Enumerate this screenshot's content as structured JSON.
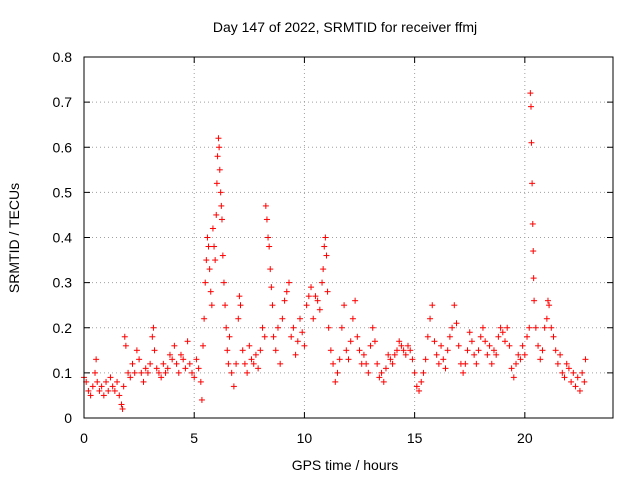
{
  "chart_data": {
    "type": "scatter",
    "title": "Day 147 of 2022, SRMTID for receiver ffmj",
    "xlabel": "GPS time / hours",
    "ylabel": "SRMTID / TECUs",
    "xlim": [
      0,
      24
    ],
    "ylim": [
      0,
      0.8
    ],
    "x_ticks": [
      0,
      5,
      10,
      15,
      20
    ],
    "y_ticks": [
      0,
      0.1,
      0.2,
      0.3,
      0.4,
      0.5,
      0.6,
      0.7,
      0.8
    ],
    "x_tick_labels": [
      "0",
      "5",
      "10",
      "15",
      "20"
    ],
    "y_tick_labels": [
      "0",
      "0.1",
      "0.2",
      "0.3",
      "0.4",
      "0.5",
      "0.6",
      "0.7",
      "0.8"
    ],
    "grid": true,
    "marker": "+",
    "series": [
      {
        "name": "SRMTID",
        "color": "#ff0000",
        "points": [
          [
            0.0,
            0.09
          ],
          [
            0.1,
            0.08
          ],
          [
            0.2,
            0.06
          ],
          [
            0.3,
            0.05
          ],
          [
            0.4,
            0.07
          ],
          [
            0.5,
            0.1
          ],
          [
            0.55,
            0.13
          ],
          [
            0.6,
            0.08
          ],
          [
            0.7,
            0.06
          ],
          [
            0.8,
            0.07
          ],
          [
            0.9,
            0.05
          ],
          [
            1.0,
            0.08
          ],
          [
            1.1,
            0.06
          ],
          [
            1.2,
            0.09
          ],
          [
            1.3,
            0.07
          ],
          [
            1.4,
            0.06
          ],
          [
            1.5,
            0.08
          ],
          [
            1.6,
            0.05
          ],
          [
            1.7,
            0.03
          ],
          [
            1.75,
            0.02
          ],
          [
            1.8,
            0.07
          ],
          [
            1.85,
            0.18
          ],
          [
            1.9,
            0.16
          ],
          [
            2.0,
            0.1
          ],
          [
            2.1,
            0.09
          ],
          [
            2.2,
            0.12
          ],
          [
            2.3,
            0.1
          ],
          [
            2.4,
            0.15
          ],
          [
            2.5,
            0.13
          ],
          [
            2.6,
            0.1
          ],
          [
            2.7,
            0.08
          ],
          [
            2.8,
            0.11
          ],
          [
            2.9,
            0.1
          ],
          [
            3.0,
            0.12
          ],
          [
            3.1,
            0.18
          ],
          [
            3.15,
            0.2
          ],
          [
            3.2,
            0.15
          ],
          [
            3.3,
            0.11
          ],
          [
            3.4,
            0.1
          ],
          [
            3.5,
            0.09
          ],
          [
            3.6,
            0.12
          ],
          [
            3.7,
            0.1
          ],
          [
            3.8,
            0.11
          ],
          [
            3.9,
            0.14
          ],
          [
            4.0,
            0.13
          ],
          [
            4.1,
            0.16
          ],
          [
            4.2,
            0.12
          ],
          [
            4.3,
            0.1
          ],
          [
            4.4,
            0.14
          ],
          [
            4.5,
            0.13
          ],
          [
            4.6,
            0.11
          ],
          [
            4.7,
            0.17
          ],
          [
            4.8,
            0.12
          ],
          [
            4.9,
            0.1
          ],
          [
            5.0,
            0.09
          ],
          [
            5.1,
            0.13
          ],
          [
            5.2,
            0.11
          ],
          [
            5.3,
            0.08
          ],
          [
            5.35,
            0.04
          ],
          [
            5.4,
            0.16
          ],
          [
            5.45,
            0.22
          ],
          [
            5.5,
            0.3
          ],
          [
            5.55,
            0.35
          ],
          [
            5.6,
            0.4
          ],
          [
            5.65,
            0.38
          ],
          [
            5.7,
            0.33
          ],
          [
            5.75,
            0.28
          ],
          [
            5.8,
            0.25
          ],
          [
            5.85,
            0.42
          ],
          [
            5.9,
            0.38
          ],
          [
            5.95,
            0.35
          ],
          [
            6.0,
            0.45
          ],
          [
            6.03,
            0.52
          ],
          [
            6.06,
            0.58
          ],
          [
            6.1,
            0.62
          ],
          [
            6.13,
            0.6
          ],
          [
            6.16,
            0.55
          ],
          [
            6.2,
            0.5
          ],
          [
            6.23,
            0.47
          ],
          [
            6.26,
            0.44
          ],
          [
            6.3,
            0.36
          ],
          [
            6.35,
            0.3
          ],
          [
            6.4,
            0.25
          ],
          [
            6.45,
            0.2
          ],
          [
            6.5,
            0.15
          ],
          [
            6.55,
            0.12
          ],
          [
            6.6,
            0.18
          ],
          [
            6.7,
            0.1
          ],
          [
            6.8,
            0.07
          ],
          [
            6.9,
            0.12
          ],
          [
            7.0,
            0.22
          ],
          [
            7.05,
            0.27
          ],
          [
            7.1,
            0.25
          ],
          [
            7.2,
            0.15
          ],
          [
            7.3,
            0.12
          ],
          [
            7.4,
            0.1
          ],
          [
            7.5,
            0.16
          ],
          [
            7.6,
            0.13
          ],
          [
            7.7,
            0.12
          ],
          [
            7.8,
            0.14
          ],
          [
            7.9,
            0.11
          ],
          [
            8.0,
            0.15
          ],
          [
            8.1,
            0.2
          ],
          [
            8.2,
            0.18
          ],
          [
            8.25,
            0.47
          ],
          [
            8.3,
            0.44
          ],
          [
            8.35,
            0.4
          ],
          [
            8.4,
            0.38
          ],
          [
            8.45,
            0.33
          ],
          [
            8.5,
            0.29
          ],
          [
            8.55,
            0.25
          ],
          [
            8.6,
            0.18
          ],
          [
            8.7,
            0.15
          ],
          [
            8.8,
            0.2
          ],
          [
            8.9,
            0.12
          ],
          [
            9.0,
            0.22
          ],
          [
            9.1,
            0.26
          ],
          [
            9.2,
            0.28
          ],
          [
            9.3,
            0.3
          ],
          [
            9.4,
            0.18
          ],
          [
            9.5,
            0.2
          ],
          [
            9.6,
            0.14
          ],
          [
            9.7,
            0.17
          ],
          [
            9.8,
            0.22
          ],
          [
            9.9,
            0.19
          ],
          [
            10.0,
            0.16
          ],
          [
            10.1,
            0.25
          ],
          [
            10.2,
            0.27
          ],
          [
            10.3,
            0.29
          ],
          [
            10.4,
            0.22
          ],
          [
            10.5,
            0.27
          ],
          [
            10.6,
            0.26
          ],
          [
            10.7,
            0.24
          ],
          [
            10.8,
            0.3
          ],
          [
            10.85,
            0.33
          ],
          [
            10.9,
            0.38
          ],
          [
            10.95,
            0.4
          ],
          [
            11.0,
            0.36
          ],
          [
            11.05,
            0.28
          ],
          [
            11.1,
            0.2
          ],
          [
            11.2,
            0.15
          ],
          [
            11.3,
            0.12
          ],
          [
            11.4,
            0.08
          ],
          [
            11.5,
            0.1
          ],
          [
            11.6,
            0.13
          ],
          [
            11.7,
            0.2
          ],
          [
            11.8,
            0.25
          ],
          [
            11.9,
            0.15
          ],
          [
            12.0,
            0.13
          ],
          [
            12.1,
            0.17
          ],
          [
            12.2,
            0.22
          ],
          [
            12.3,
            0.26
          ],
          [
            12.4,
            0.18
          ],
          [
            12.5,
            0.15
          ],
          [
            12.6,
            0.12
          ],
          [
            12.7,
            0.14
          ],
          [
            12.8,
            0.12
          ],
          [
            12.9,
            0.1
          ],
          [
            13.0,
            0.16
          ],
          [
            13.1,
            0.2
          ],
          [
            13.2,
            0.17
          ],
          [
            13.3,
            0.12
          ],
          [
            13.4,
            0.09
          ],
          [
            13.5,
            0.1
          ],
          [
            13.6,
            0.08
          ],
          [
            13.7,
            0.11
          ],
          [
            13.8,
            0.14
          ],
          [
            13.9,
            0.13
          ],
          [
            14.0,
            0.12
          ],
          [
            14.1,
            0.14
          ],
          [
            14.2,
            0.15
          ],
          [
            14.3,
            0.17
          ],
          [
            14.4,
            0.16
          ],
          [
            14.5,
            0.15
          ],
          [
            14.6,
            0.14
          ],
          [
            14.7,
            0.16
          ],
          [
            14.8,
            0.15
          ],
          [
            14.9,
            0.13
          ],
          [
            15.0,
            0.1
          ],
          [
            15.1,
            0.07
          ],
          [
            15.2,
            0.06
          ],
          [
            15.3,
            0.08
          ],
          [
            15.4,
            0.1
          ],
          [
            15.5,
            0.13
          ],
          [
            15.6,
            0.18
          ],
          [
            15.7,
            0.22
          ],
          [
            15.8,
            0.25
          ],
          [
            15.9,
            0.17
          ],
          [
            16.0,
            0.14
          ],
          [
            16.1,
            0.12
          ],
          [
            16.2,
            0.16
          ],
          [
            16.3,
            0.13
          ],
          [
            16.4,
            0.11
          ],
          [
            16.5,
            0.15
          ],
          [
            16.6,
            0.18
          ],
          [
            16.7,
            0.2
          ],
          [
            16.8,
            0.25
          ],
          [
            16.9,
            0.21
          ],
          [
            17.0,
            0.16
          ],
          [
            17.1,
            0.12
          ],
          [
            17.2,
            0.1
          ],
          [
            17.3,
            0.12
          ],
          [
            17.4,
            0.15
          ],
          [
            17.5,
            0.19
          ],
          [
            17.6,
            0.17
          ],
          [
            17.7,
            0.14
          ],
          [
            17.8,
            0.12
          ],
          [
            17.9,
            0.15
          ],
          [
            18.0,
            0.18
          ],
          [
            18.1,
            0.2
          ],
          [
            18.2,
            0.17
          ],
          [
            18.3,
            0.14
          ],
          [
            18.4,
            0.16
          ],
          [
            18.5,
            0.12
          ],
          [
            18.6,
            0.15
          ],
          [
            18.7,
            0.14
          ],
          [
            18.8,
            0.18
          ],
          [
            18.9,
            0.2
          ],
          [
            19.0,
            0.19
          ],
          [
            19.1,
            0.17
          ],
          [
            19.2,
            0.2
          ],
          [
            19.3,
            0.16
          ],
          [
            19.4,
            0.11
          ],
          [
            19.5,
            0.09
          ],
          [
            19.6,
            0.12
          ],
          [
            19.7,
            0.14
          ],
          [
            19.8,
            0.13
          ],
          [
            19.9,
            0.16
          ],
          [
            20.0,
            0.14
          ],
          [
            20.1,
            0.18
          ],
          [
            20.2,
            0.2
          ],
          [
            20.25,
            0.72
          ],
          [
            20.28,
            0.69
          ],
          [
            20.3,
            0.61
          ],
          [
            20.33,
            0.52
          ],
          [
            20.36,
            0.43
          ],
          [
            20.38,
            0.37
          ],
          [
            20.4,
            0.31
          ],
          [
            20.42,
            0.26
          ],
          [
            20.5,
            0.2
          ],
          [
            20.6,
            0.16
          ],
          [
            20.7,
            0.13
          ],
          [
            20.8,
            0.15
          ],
          [
            20.9,
            0.2
          ],
          [
            21.0,
            0.22
          ],
          [
            21.05,
            0.26
          ],
          [
            21.1,
            0.25
          ],
          [
            21.2,
            0.2
          ],
          [
            21.3,
            0.18
          ],
          [
            21.4,
            0.15
          ],
          [
            21.5,
            0.12
          ],
          [
            21.6,
            0.14
          ],
          [
            21.7,
            0.1
          ],
          [
            21.8,
            0.09
          ],
          [
            21.9,
            0.12
          ],
          [
            22.0,
            0.11
          ],
          [
            22.1,
            0.08
          ],
          [
            22.2,
            0.1
          ],
          [
            22.3,
            0.07
          ],
          [
            22.4,
            0.09
          ],
          [
            22.5,
            0.06
          ],
          [
            22.6,
            0.1
          ],
          [
            22.7,
            0.08
          ],
          [
            22.75,
            0.13
          ]
        ]
      }
    ]
  }
}
